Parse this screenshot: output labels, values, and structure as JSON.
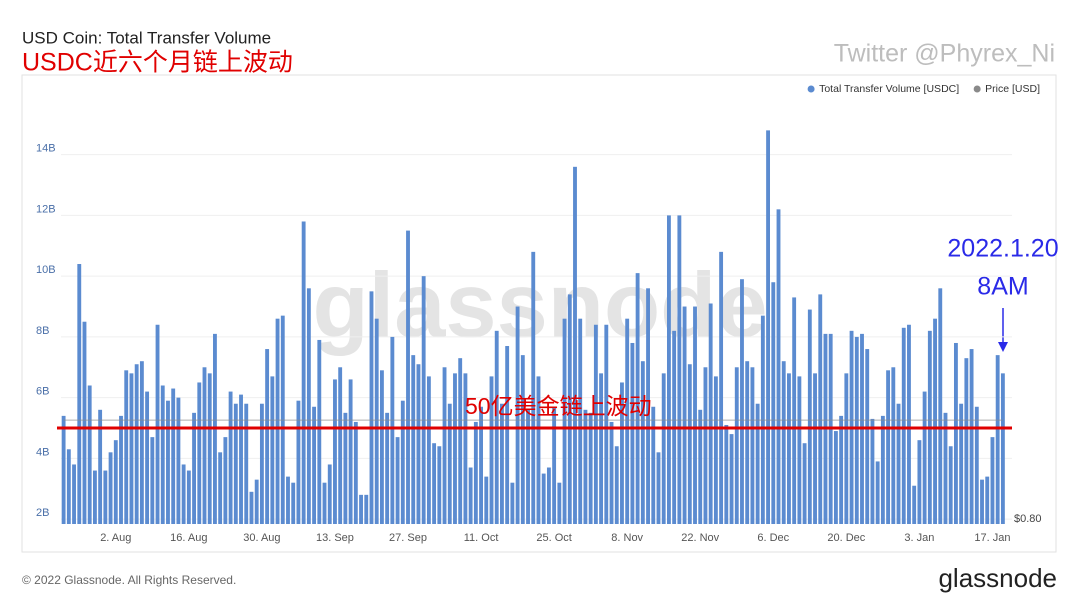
{
  "chart_data": {
    "type": "bar",
    "title": "USD Coin: Total Transfer Volume",
    "subtitle": "USDC近六个月链上波动",
    "categories": [
      null,
      null,
      null,
      null,
      null,
      null,
      null,
      null,
      null,
      null,
      "2. Aug",
      null,
      null,
      null,
      null,
      null,
      null,
      null,
      null,
      null,
      null,
      null,
      null,
      null,
      "16. Aug",
      null,
      null,
      null,
      null,
      null,
      null,
      null,
      null,
      null,
      null,
      null,
      null,
      null,
      "30. Aug",
      null,
      null,
      null,
      null,
      null,
      null,
      null,
      null,
      null,
      null,
      null,
      null,
      null,
      "13. Sep",
      null,
      null,
      null,
      null,
      null,
      null,
      null,
      null,
      null,
      null,
      null,
      null,
      null,
      "27. Sep",
      null,
      null,
      null,
      null,
      null,
      null,
      null,
      null,
      null,
      null,
      null,
      null,
      null,
      "11. Oct",
      null,
      null,
      null,
      null,
      null,
      null,
      null,
      null,
      null,
      null,
      null,
      null,
      null,
      "25. Oct",
      null,
      null,
      null,
      null,
      null,
      null,
      null,
      null,
      null,
      null,
      null,
      null,
      null,
      "8. Nov",
      null,
      null,
      null,
      null,
      null,
      null,
      null,
      null,
      null,
      null,
      null,
      null,
      null,
      "22. Nov",
      null,
      null,
      null,
      null,
      null,
      null,
      null,
      null,
      null,
      null,
      null,
      null,
      null,
      "6. Dec",
      null,
      null,
      null,
      null,
      null,
      null,
      null,
      null,
      null,
      null,
      null,
      null,
      null,
      "20. Dec",
      null,
      null,
      null,
      null,
      null,
      null,
      null,
      null,
      null,
      null,
      null,
      null,
      null,
      "3. Jan",
      null,
      null,
      null,
      null,
      null,
      null,
      null,
      null,
      null,
      null,
      null,
      null,
      null,
      "17. Jan",
      null,
      null
    ],
    "series": [
      {
        "name": "Total Transfer Volume [USDC]",
        "color": "#5b8bd0",
        "values": [
          5.4,
          4.3,
          3.8,
          10.4,
          8.5,
          6.4,
          3.6,
          5.6,
          3.6,
          4.2,
          4.6,
          5.4,
          6.9,
          6.8,
          7.1,
          7.2,
          6.2,
          4.7,
          8.4,
          6.4,
          5.9,
          6.3,
          6.0,
          3.8,
          3.6,
          5.5,
          6.5,
          7.0,
          6.8,
          8.1,
          4.2,
          4.7,
          6.2,
          5.8,
          6.1,
          5.8,
          2.9,
          3.3,
          5.8,
          7.6,
          6.7,
          8.6,
          8.7,
          3.4,
          3.2,
          5.9,
          11.8,
          9.6,
          5.7,
          7.9,
          3.2,
          3.8,
          6.6,
          7.0,
          5.5,
          6.6,
          5.2,
          2.8,
          2.8,
          9.5,
          8.6,
          6.9,
          5.5,
          8.0,
          4.7,
          5.9,
          11.5,
          7.4,
          7.1,
          10.0,
          6.7,
          4.5,
          4.4,
          7.0,
          5.8,
          6.8,
          7.3,
          6.8,
          3.7,
          5.2,
          5.7,
          3.4,
          6.7,
          8.2,
          5.8,
          7.7,
          3.2,
          9.0,
          7.4,
          5.6,
          10.8,
          6.7,
          3.5,
          3.7,
          5.7,
          3.2,
          8.6,
          9.4,
          13.6,
          8.6,
          5.6,
          5.5,
          8.4,
          6.8,
          8.4,
          5.2,
          4.4,
          6.5,
          8.6,
          7.8,
          10.1,
          7.2,
          9.6,
          5.7,
          4.2,
          6.8,
          12.0,
          8.2,
          12.0,
          9.0,
          7.1,
          9.0,
          5.6,
          7.0,
          9.1,
          6.7,
          10.8,
          5.1,
          4.8,
          7.0,
          9.9,
          7.2,
          7.0,
          5.8,
          8.7,
          14.8,
          9.8,
          12.2,
          7.2,
          6.8,
          9.3,
          6.7,
          4.5,
          8.9,
          6.8,
          9.4,
          8.1,
          8.1,
          4.9,
          5.4,
          6.8,
          8.2,
          8.0,
          8.1,
          7.6,
          5.3,
          3.9,
          5.4,
          6.9,
          7.0,
          5.8,
          8.3,
          8.4,
          3.1,
          4.6,
          6.2,
          8.2,
          8.6,
          9.6,
          5.5,
          4.4,
          7.8,
          5.8,
          7.3,
          7.6,
          5.7,
          3.3,
          3.4,
          4.7,
          7.4,
          6.8
        ]
      },
      {
        "name": "Price [USD]",
        "color": "#8a8a8a",
        "type": "line",
        "axis": "y2",
        "values": [
          1,
          1,
          1,
          1,
          1,
          1,
          1,
          1,
          1,
          1,
          1,
          1,
          1,
          1,
          1,
          1,
          1,
          1,
          1,
          1,
          1,
          1,
          1,
          1,
          1,
          1,
          1,
          1,
          1,
          1,
          1,
          1,
          1,
          1,
          1,
          1,
          1,
          1,
          1,
          1,
          1,
          1,
          1,
          1,
          1,
          1,
          1,
          1,
          1,
          1,
          1,
          1,
          1,
          1,
          1,
          1,
          1,
          1,
          1,
          1,
          1,
          1,
          1,
          1,
          1,
          1,
          1,
          1,
          1,
          1,
          1,
          1,
          1,
          1,
          1,
          1,
          1,
          1,
          1,
          1,
          1,
          1,
          1,
          1,
          1,
          1,
          1,
          1,
          1,
          1,
          1,
          1,
          1,
          1,
          1,
          1,
          1,
          1,
          1,
          1,
          1,
          1,
          1,
          1,
          1,
          1,
          1,
          1,
          1,
          1,
          1,
          1,
          1,
          1,
          1,
          1,
          1,
          1,
          1,
          1,
          1,
          1,
          1,
          1,
          1,
          1,
          1,
          1,
          1,
          1,
          1,
          1,
          1,
          1,
          1,
          1,
          1,
          1,
          1,
          1,
          1,
          1,
          1,
          1,
          1,
          1,
          1,
          1,
          1,
          1,
          1,
          1,
          1,
          1,
          1,
          1,
          1,
          1,
          1,
          1,
          1,
          1,
          1,
          1,
          1,
          1,
          1,
          1,
          1,
          1,
          1,
          1,
          1,
          1,
          1,
          1,
          1,
          1,
          1,
          1,
          1
        ]
      }
    ],
    "ylim": [
      1.84,
      15.8
    ],
    "yticks": [
      {
        "value": 2,
        "label": "2B"
      },
      {
        "value": 4,
        "label": "4B"
      },
      {
        "value": 6,
        "label": "6B"
      },
      {
        "value": 8,
        "label": "8B"
      },
      {
        "value": 10,
        "label": "10B"
      },
      {
        "value": 12,
        "label": "12B"
      },
      {
        "value": 14,
        "label": "14B"
      }
    ],
    "y2lim": [
      0.79,
      1.647
    ],
    "y2ticks": [
      {
        "value": 0.8,
        "label": "$0.80"
      }
    ],
    "grid": true,
    "legend": "top-right",
    "reference_line": {
      "text": "50亿美金链上波动",
      "value": 5,
      "color": "#e00000"
    },
    "annotations": [
      "2022.1.20",
      "8AM"
    ],
    "watermark": "glassnode"
  },
  "twitter": "Twitter @Phyrex_Ni",
  "footer": "© 2022 Glassnode. All Rights Reserved.",
  "logo": "glassnode"
}
